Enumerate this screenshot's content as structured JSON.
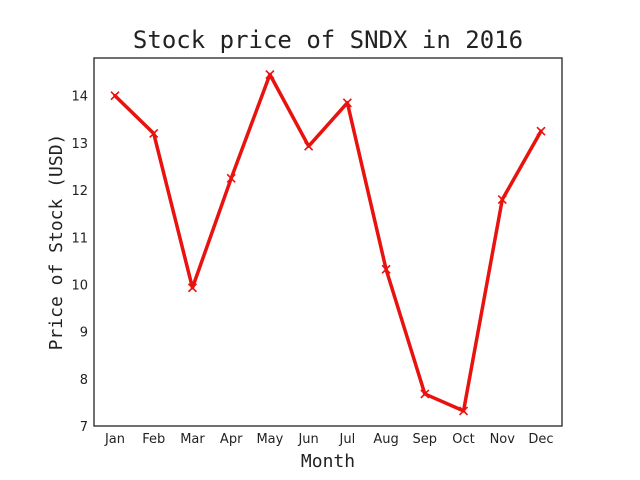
{
  "chart_data": {
    "type": "line",
    "title": "Stock price of SNDX in 2016",
    "xlabel": "Month",
    "ylabel": "Price of Stock (USD)",
    "categories": [
      "Jan",
      "Feb",
      "Mar",
      "Apr",
      "May",
      "Jun",
      "Jul",
      "Aug",
      "Sep",
      "Oct",
      "Nov",
      "Dec"
    ],
    "series": [
      {
        "values": [
          14.0,
          13.2,
          9.93,
          12.25,
          14.45,
          12.93,
          13.85,
          10.32,
          7.68,
          7.32,
          11.8,
          13.25
        ],
        "color": "#e8120f",
        "marker": "x"
      }
    ],
    "ylim": [
      7,
      14.8
    ],
    "yticks": [
      7,
      8,
      9,
      10,
      11,
      12,
      13,
      14
    ],
    "grid": false,
    "legend": false
  }
}
